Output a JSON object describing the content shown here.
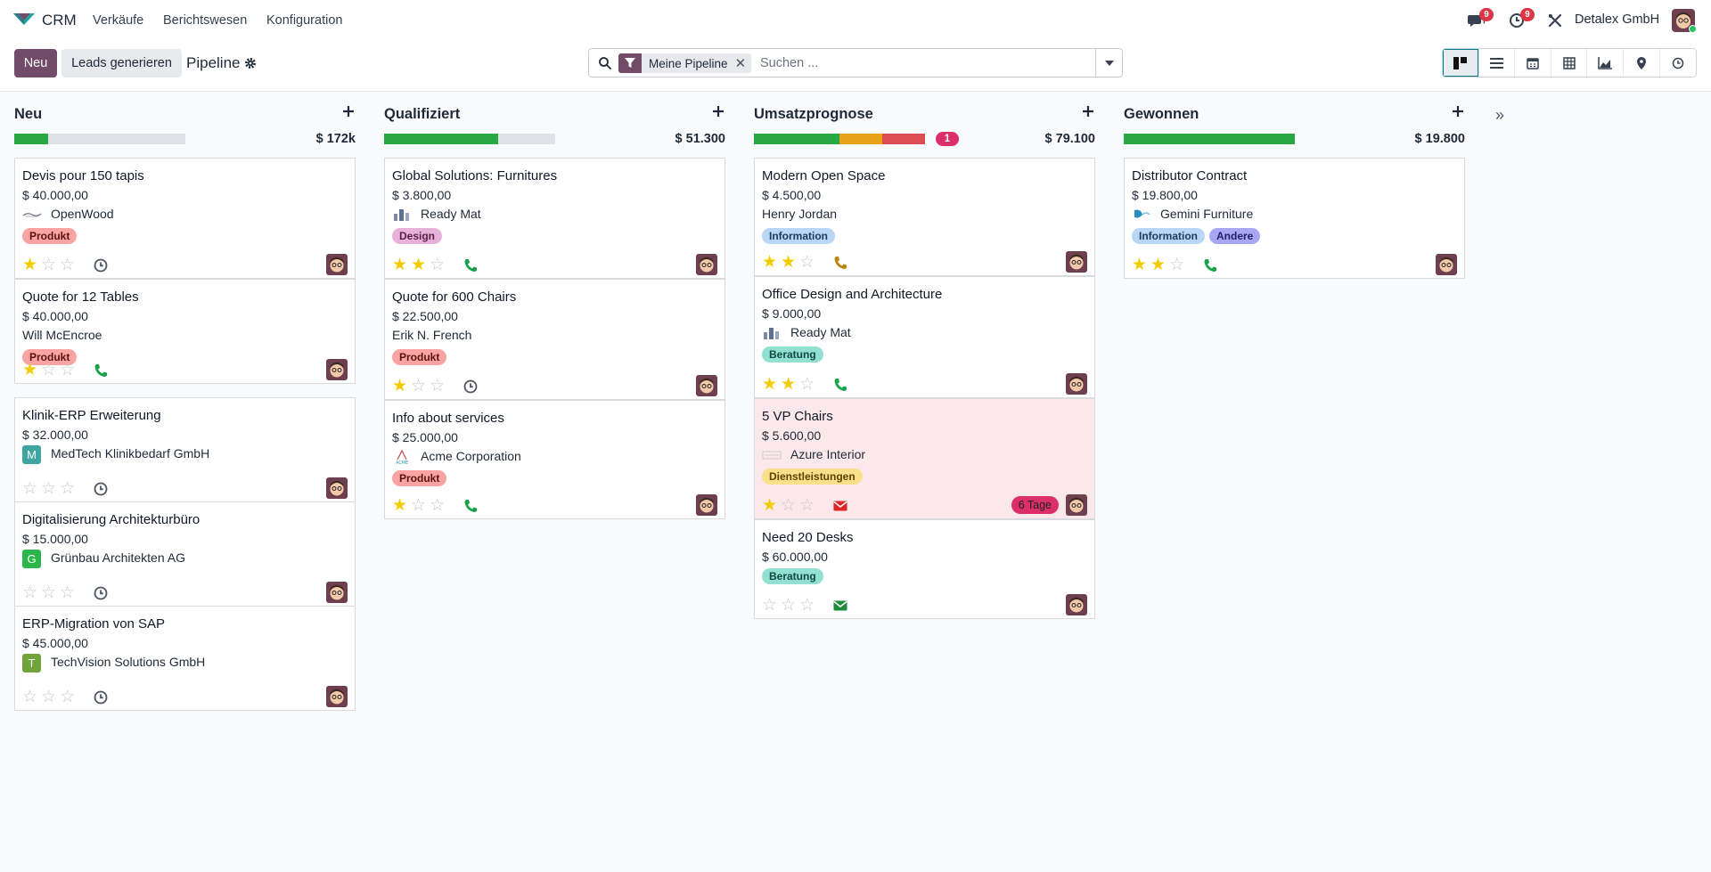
{
  "nav": {
    "app": "CRM",
    "menus": [
      "Verkäufe",
      "Berichtswesen",
      "Konfiguration"
    ],
    "messages_count": "9",
    "activities_count": "9",
    "company": "Detalex GmbH"
  },
  "control": {
    "new_label": "Neu",
    "generate_label": "Leads generieren",
    "title": "Pipeline",
    "facet": "Meine Pipeline",
    "search_placeholder": "Suchen ...",
    "facet_close": "✕"
  },
  "columns": [
    {
      "name": "Neu",
      "total": "$ 172k",
      "cards": [
        {
          "title": "Devis pour 150 tapis",
          "amount": "$ 40.000,00",
          "partner": "OpenWood",
          "tags": [
            "Produkt"
          ],
          "stars": 1
        },
        {
          "title": "Quote for 12 Tables",
          "amount": "$ 40.000,00",
          "partner": "Will McEncroe",
          "tags": [
            "Produkt"
          ],
          "stars": 1
        },
        {
          "title": "Klinik-ERP Erweiterung",
          "amount": "$ 32.000,00",
          "partner": "MedTech Klinikbedarf GmbH",
          "initial": "M",
          "tags": [],
          "stars": 0
        },
        {
          "title": "Digitalisierung Architekturbüro",
          "amount": "$ 15.000,00",
          "partner": "Grünbau Architekten AG",
          "initial": "G",
          "tags": [],
          "stars": 0
        },
        {
          "title": "ERP-Migration von SAP",
          "amount": "$ 45.000,00",
          "partner": "TechVision Solutions GmbH",
          "initial": "T",
          "tags": [],
          "stars": 0
        }
      ]
    },
    {
      "name": "Qualifiziert",
      "total": "$ 51.300",
      "cards": [
        {
          "title": "Global Solutions: Furnitures",
          "amount": "$ 3.800,00",
          "partner": "Ready Mat",
          "tags": [
            "Design"
          ],
          "stars": 2
        },
        {
          "title": "Quote for 600 Chairs",
          "amount": "$ 22.500,00",
          "partner": "Erik N. French",
          "tags": [
            "Produkt"
          ],
          "stars": 1
        },
        {
          "title": "Info about services",
          "amount": "$ 25.000,00",
          "partner": "Acme Corporation",
          "tags": [
            "Produkt"
          ],
          "stars": 1
        }
      ]
    },
    {
      "name": "Umsatzprognose",
      "total": "$ 79.100",
      "overdue": "1",
      "cards": [
        {
          "title": "Modern Open Space",
          "amount": "$ 4.500,00",
          "partner": "Henry Jordan",
          "tags": [
            "Information"
          ],
          "stars": 2
        },
        {
          "title": "Office Design and Architecture",
          "amount": "$ 9.000,00",
          "partner": "Ready Mat",
          "tags": [
            "Beratung"
          ],
          "stars": 2
        },
        {
          "title": "5 VP Chairs",
          "amount": "$ 5.600,00",
          "partner": "Azure Interior",
          "tags": [
            "Dienstleistungen"
          ],
          "stars": 1,
          "deadline": "6 Tage"
        },
        {
          "title": "Need 20 Desks",
          "amount": "$ 60.000,00",
          "partner": "",
          "tags": [
            "Beratung"
          ],
          "stars": 0
        }
      ]
    },
    {
      "name": "Gewonnen",
      "total": "$ 19.800",
      "cards": [
        {
          "title": "Distributor Contract",
          "amount": "$ 19.800,00",
          "partner": "Gemini Furniture",
          "tags": [
            "Information",
            "Andere"
          ],
          "stars": 2
        }
      ]
    }
  ],
  "colors": {
    "primary": "#714b67",
    "success": "#28a745",
    "warning": "#e8a217",
    "danger": "#dc4e54",
    "star": "#f3cc00"
  }
}
